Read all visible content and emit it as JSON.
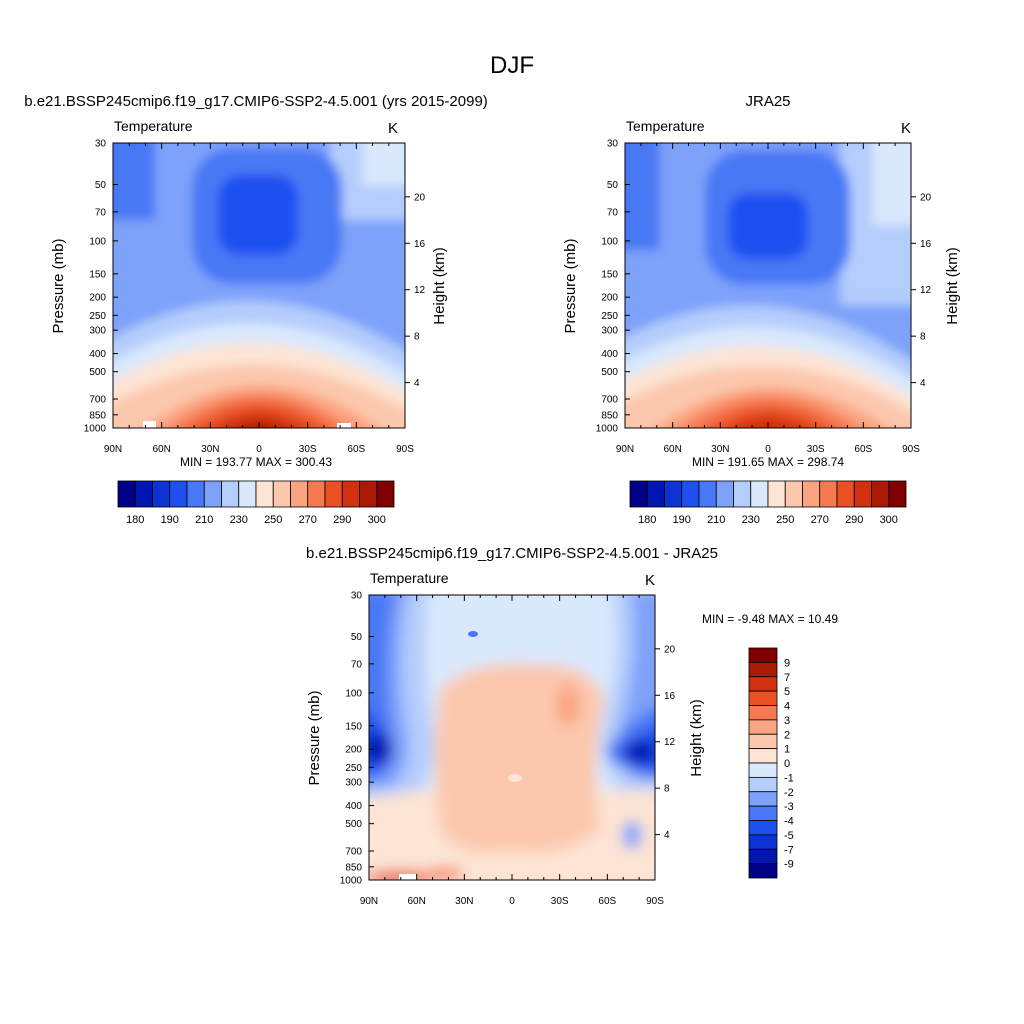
{
  "figure": {
    "title": "DJF"
  },
  "panels": [
    {
      "id": "model",
      "title": "b.e21.BSSP245cmip6.f19_g17.CMIP6-SSP2-4.5.001 (yrs 2015-2099)",
      "left_label": "Temperature",
      "right_label": "K",
      "stats": "MIN = 193.77  MAX = 300.43",
      "ylabel": "Pressure (mb)",
      "y2label": "Height (km)"
    },
    {
      "id": "obs",
      "title": "JRA25",
      "left_label": "Temperature",
      "right_label": "K",
      "stats": "MIN = 191.65  MAX = 298.74",
      "ylabel": "Pressure (mb)",
      "y2label": "Height (km)"
    },
    {
      "id": "diff",
      "title": "b.e21.BSSP245cmip6.f19_g17.CMIP6-SSP2-4.5.001 - JRA25",
      "left_label": "Temperature",
      "right_label": "K",
      "stats": "MIN =  -9.48  MAX =  10.49",
      "ylabel": "Pressure (mb)",
      "y2label": "Height (km)"
    }
  ],
  "chart_data": [
    {
      "type": "heatmap",
      "title": "b.e21.BSSP245cmip6.f19_g17.CMIP6-SSP2-4.5.001 (yrs 2015-2099)",
      "xlabel": "",
      "ylabel": "Pressure (mb)",
      "y2label": "Height (km)",
      "x_ticklabels": [
        "90N",
        "60N",
        "30N",
        "0",
        "30S",
        "60S",
        "90S"
      ],
      "y_ticklabels": [
        "30",
        "50",
        "70",
        "100",
        "150",
        "200",
        "250",
        "300",
        "400",
        "500",
        "700",
        "850",
        "1000"
      ],
      "y2_ticklabels": [
        "20",
        "16",
        "12",
        "8",
        "4"
      ],
      "colorbar_levels": [
        180,
        185,
        190,
        200,
        210,
        220,
        230,
        240,
        250,
        260,
        270,
        280,
        290,
        295,
        300
      ],
      "colorbar_labels": [
        "180",
        "190",
        "210",
        "230",
        "250",
        "270",
        "290",
        "300"
      ],
      "colors": [
        "#000089",
        "#0016b0",
        "#0a34d6",
        "#1e50f0",
        "#4878f5",
        "#7ea2fa",
        "#b4cdfc",
        "#dae8fd",
        "#fde4d4",
        "#fcc8ad",
        "#fba481",
        "#f57a51",
        "#ea5226",
        "#d23010",
        "#aa1a05",
        "#800000"
      ],
      "min": 193.77,
      "max": 300.43
    },
    {
      "type": "heatmap",
      "title": "JRA25",
      "xlabel": "",
      "ylabel": "Pressure (mb)",
      "y2label": "Height (km)",
      "x_ticklabels": [
        "90N",
        "60N",
        "30N",
        "0",
        "30S",
        "60S",
        "90S"
      ],
      "y_ticklabels": [
        "30",
        "50",
        "70",
        "100",
        "150",
        "200",
        "250",
        "300",
        "400",
        "500",
        "700",
        "850",
        "1000"
      ],
      "y2_ticklabels": [
        "20",
        "16",
        "12",
        "8",
        "4"
      ],
      "colorbar_levels": [
        180,
        185,
        190,
        200,
        210,
        220,
        230,
        240,
        250,
        260,
        270,
        280,
        290,
        295,
        300
      ],
      "colorbar_labels": [
        "180",
        "190",
        "210",
        "230",
        "250",
        "270",
        "290",
        "300"
      ],
      "colors": [
        "#000089",
        "#0016b0",
        "#0a34d6",
        "#1e50f0",
        "#4878f5",
        "#7ea2fa",
        "#b4cdfc",
        "#dae8fd",
        "#fde4d4",
        "#fcc8ad",
        "#fba481",
        "#f57a51",
        "#ea5226",
        "#d23010",
        "#aa1a05",
        "#800000"
      ],
      "min": 191.65,
      "max": 298.74
    },
    {
      "type": "heatmap",
      "title": "b.e21.BSSP245cmip6.f19_g17.CMIP6-SSP2-4.5.001 - JRA25",
      "xlabel": "",
      "ylabel": "Pressure (mb)",
      "y2label": "Height (km)",
      "x_ticklabels": [
        "90N",
        "60N",
        "30N",
        "0",
        "30S",
        "60S",
        "90S"
      ],
      "y_ticklabels": [
        "30",
        "50",
        "70",
        "100",
        "150",
        "200",
        "250",
        "300",
        "400",
        "500",
        "700",
        "850",
        "1000"
      ],
      "y2_ticklabels": [
        "20",
        "16",
        "12",
        "8",
        "4"
      ],
      "colorbar_labels": [
        "9",
        "7",
        "5",
        "4",
        "3",
        "2",
        "1",
        "0",
        "-1",
        "-2",
        "-3",
        "-4",
        "-5",
        "-7",
        "-9"
      ],
      "colors": [
        "#800000",
        "#aa1a05",
        "#d23010",
        "#ea5226",
        "#f57a51",
        "#fba481",
        "#fcc8ad",
        "#fde4d4",
        "#dae8fd",
        "#b4cdfc",
        "#7ea2fa",
        "#4878f5",
        "#1e50f0",
        "#0a34d6",
        "#0016b0",
        "#000089"
      ],
      "min": -9.48,
      "max": 10.49
    }
  ]
}
